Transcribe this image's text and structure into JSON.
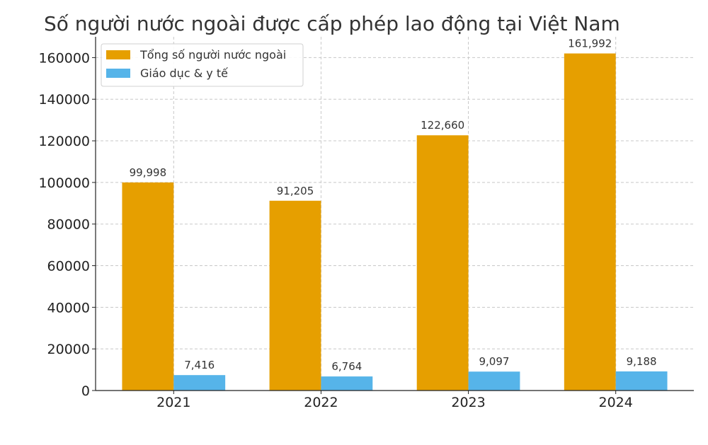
{
  "chart_data": {
    "type": "bar",
    "title": "Số người nước ngoài được cấp phép lao động tại Việt Nam",
    "xlabel": "",
    "ylabel": "",
    "categories": [
      "2021",
      "2022",
      "2023",
      "2024"
    ],
    "series": [
      {
        "name": "Tổng số người nước ngoài",
        "color": "#E69F00",
        "values": [
          99998,
          91205,
          122660,
          161992
        ],
        "labels": [
          "99,998",
          "91,205",
          "122,660",
          "161,992"
        ]
      },
      {
        "name": "Giáo dục & y tế",
        "color": "#56B4E9",
        "values": [
          7416,
          6764,
          9097,
          9188
        ],
        "labels": [
          "7,416",
          "6,764",
          "9,097",
          "9,188"
        ]
      }
    ],
    "ylim": [
      0,
      170000
    ],
    "yticks": [
      0,
      20000,
      40000,
      60000,
      80000,
      100000,
      120000,
      140000,
      160000
    ],
    "ytick_labels": [
      "0",
      "20000",
      "40000",
      "60000",
      "80000",
      "100000",
      "120000",
      "140000",
      "160000"
    ],
    "grid": true,
    "legend_position": "top-left"
  }
}
